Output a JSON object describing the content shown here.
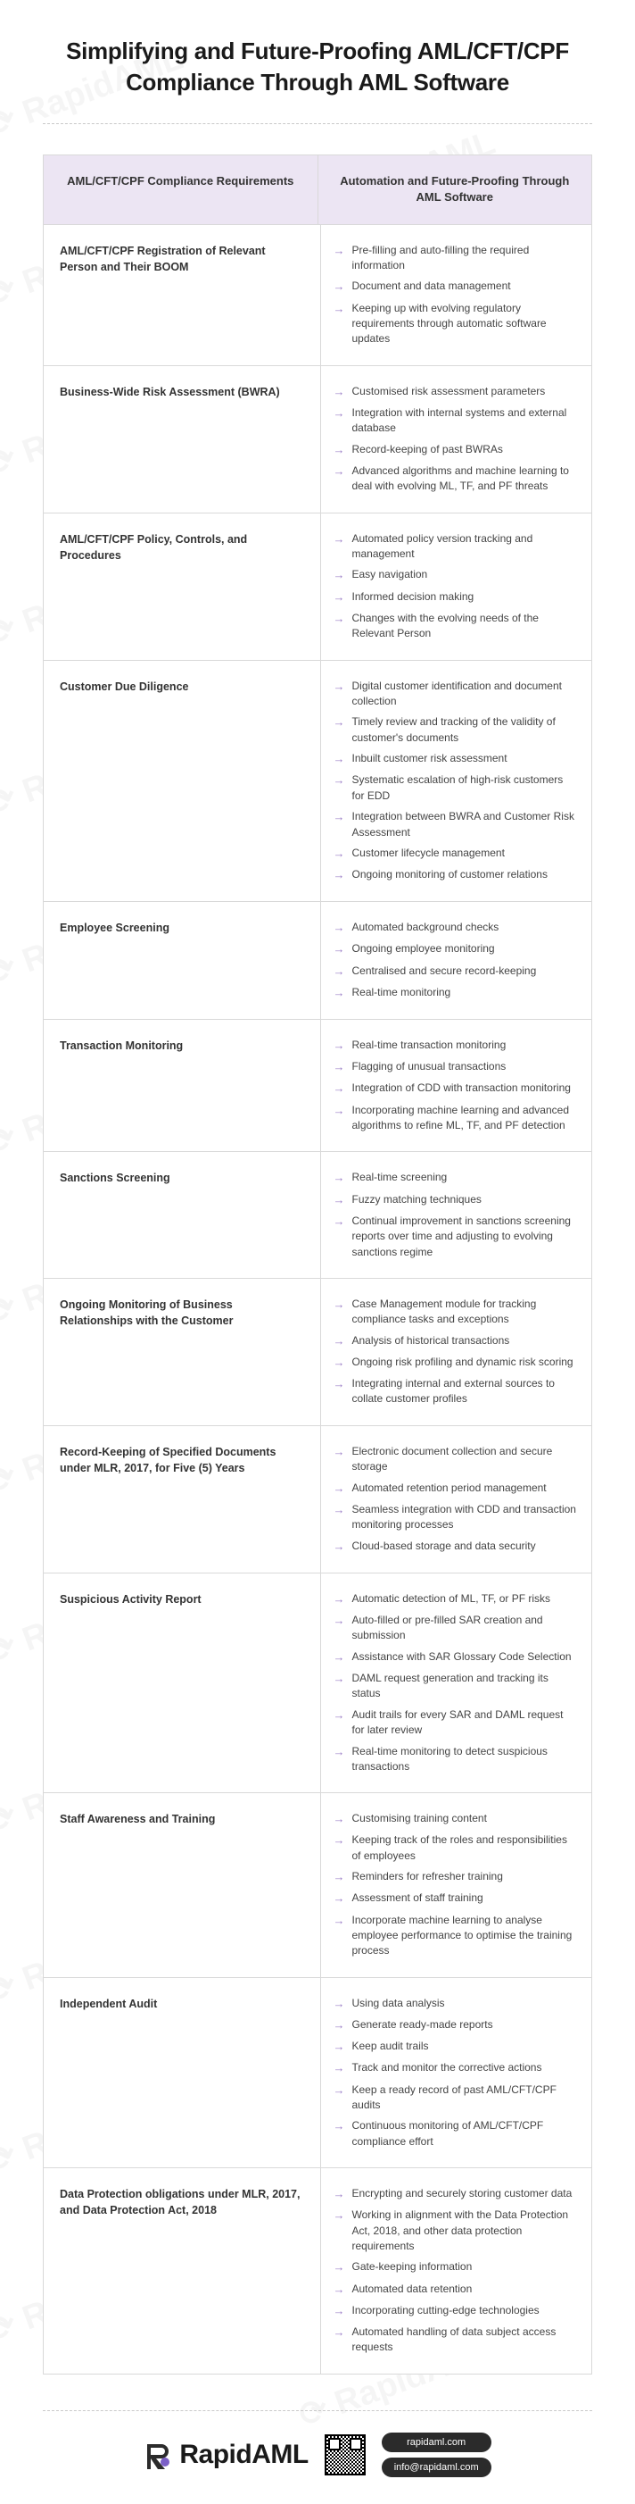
{
  "title": "Simplifying and Future-Proofing AML/CFT/CPF Compliance Through AML Software",
  "watermark_text": "RapidAML",
  "colors": {
    "header_bg": "#ece5f3",
    "border": "#d9d9d9",
    "arrow": "#9b7fc7",
    "text": "#333333",
    "pill_bg": "#2b2b2b"
  },
  "table": {
    "headers": [
      "AML/CFT/CPF Compliance Requirements",
      "Automation and Future-Proofing Through AML Software"
    ],
    "rows": [
      {
        "requirement": "AML/CFT/CPF Registration of Relevant Person and Their BOOM",
        "items": [
          "Pre-filling and auto-filling the required information",
          "Document and data management",
          "Keeping up with evolving regulatory requirements through automatic software updates"
        ]
      },
      {
        "requirement": "Business-Wide Risk Assessment (BWRA)",
        "items": [
          "Customised risk assessment parameters",
          "Integration with internal systems and external database",
          "Record-keeping of past BWRAs",
          "Advanced algorithms and machine learning to deal with evolving ML, TF, and PF threats"
        ]
      },
      {
        "requirement": "AML/CFT/CPF Policy, Controls, and Procedures",
        "items": [
          "Automated policy version tracking and management",
          "Easy navigation",
          "Informed decision making",
          "Changes with the evolving needs of the Relevant Person"
        ]
      },
      {
        "requirement": "Customer Due Diligence",
        "items": [
          "Digital customer identification and document collection",
          "Timely review and tracking of the validity of customer's documents",
          "Inbuilt customer risk assessment",
          "Systematic escalation of high-risk customers for EDD",
          "Integration between BWRA and Customer Risk Assessment",
          "Customer lifecycle management",
          "Ongoing monitoring of customer relations"
        ]
      },
      {
        "requirement": "Employee Screening",
        "items": [
          "Automated background checks",
          "Ongoing employee monitoring",
          "Centralised and secure record-keeping",
          "Real-time monitoring"
        ]
      },
      {
        "requirement": "Transaction Monitoring",
        "items": [
          "Real-time transaction monitoring",
          "Flagging of unusual transactions",
          "Integration of CDD with transaction monitoring",
          "Incorporating machine learning and advanced algorithms to refine ML, TF, and PF detection"
        ]
      },
      {
        "requirement": "Sanctions Screening",
        "items": [
          "Real-time screening",
          "Fuzzy matching techniques",
          "Continual improvement in sanctions screening reports over time and adjusting to evolving sanctions regime"
        ]
      },
      {
        "requirement": "Ongoing Monitoring of Business Relationships with the Customer",
        "items": [
          "Case Management module for tracking compliance tasks and exceptions",
          "Analysis of historical transactions",
          "Ongoing risk profiling and dynamic risk scoring",
          "Integrating internal and external sources to collate customer profiles"
        ]
      },
      {
        "requirement": "Record-Keeping of Specified Documents under MLR, 2017, for Five (5) Years",
        "items": [
          "Electronic document collection and secure storage",
          "Automated retention period management",
          "Seamless integration with CDD and transaction monitoring processes",
          "Cloud-based storage and data security"
        ]
      },
      {
        "requirement": "Suspicious Activity Report",
        "items": [
          "Automatic detection of ML, TF, or PF risks",
          "Auto-filled or pre-filled SAR creation and submission",
          "Assistance with SAR Glossary Code Selection",
          "DAML request generation and tracking its status",
          "Audit trails for every SAR and DAML request for later review",
          "Real-time monitoring to detect suspicious transactions"
        ]
      },
      {
        "requirement": "Staff Awareness and Training",
        "items": [
          "Customising training content",
          "Keeping track of the roles and responsibilities of employees",
          "Reminders for refresher training",
          "Assessment of staff training",
          "Incorporate machine learning to analyse employee performance to optimise the training process"
        ]
      },
      {
        "requirement": "Independent Audit",
        "items": [
          "Using data analysis",
          "Generate ready-made reports",
          "Keep audit trails",
          "Track and monitor the corrective actions",
          "Keep a ready record of past AML/CFT/CPF audits",
          "Continuous monitoring of AML/CFT/CPF compliance effort"
        ]
      },
      {
        "requirement": "Data Protection obligations under MLR, 2017, and Data Protection Act, 2018",
        "items": [
          "Encrypting and securely storing customer data",
          "Working in alignment with the Data Protection Act, 2018, and other data protection requirements",
          "Gate-keeping information",
          "Automated data retention",
          "Incorporating cutting-edge technologies",
          "Automated handling of data subject access requests"
        ]
      }
    ]
  },
  "footer": {
    "logo_text": "RapidAML",
    "website": "rapidaml.com",
    "email": "info@rapidaml.com"
  }
}
